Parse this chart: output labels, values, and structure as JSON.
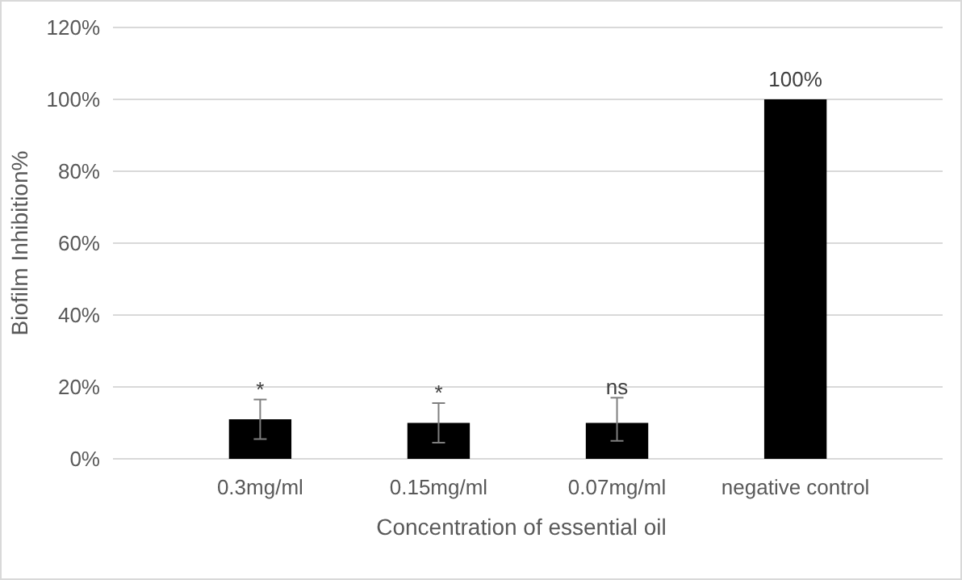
{
  "chart_data": {
    "type": "bar",
    "xlabel": "Concentration of essential oil",
    "ylabel": "Biofilm Inhibition%",
    "categories": [
      "0.3mg/ml",
      "0.15mg/ml",
      "0.07mg/ml",
      "negative control"
    ],
    "values": [
      11,
      10,
      10,
      100
    ],
    "color": "#000000",
    "errors": [
      [
        5.5,
        16.5
      ],
      [
        4.5,
        15.5
      ],
      [
        5,
        17
      ],
      null
    ],
    "value_labels": [
      null,
      null,
      null,
      "100%"
    ],
    "annotations": [
      {
        "text": "*",
        "x": "0.3mg/ml",
        "y": 16.5
      },
      {
        "text": "*",
        "x": "0.15mg/ml",
        "y": 15.5
      },
      {
        "text": "ns",
        "x": "0.07mg/ml",
        "y": 17
      }
    ],
    "ylim": [
      0,
      120
    ],
    "yticks": [
      {
        "value": 0,
        "label": "0%"
      },
      {
        "value": 20,
        "label": "20%"
      },
      {
        "value": 40,
        "label": "40%"
      },
      {
        "value": 60,
        "label": "60%"
      },
      {
        "value": 80,
        "label": "80%"
      },
      {
        "value": 100,
        "label": "100%"
      },
      {
        "value": 120,
        "label": "120%"
      }
    ],
    "grid": "y"
  }
}
